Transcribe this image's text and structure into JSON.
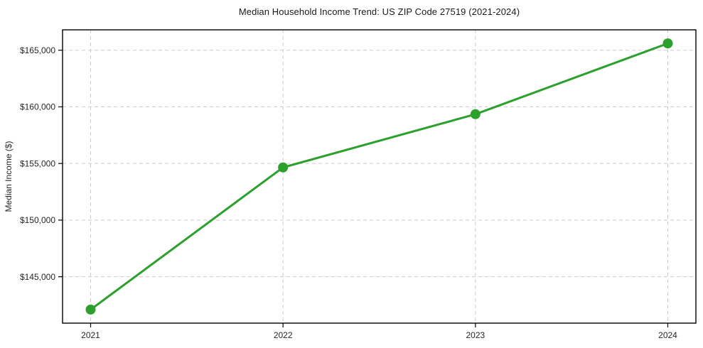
{
  "figure": {
    "title": "Median Household Income Trend: US ZIP Code 27519 (2021-2024)"
  },
  "chart_data": {
    "type": "line",
    "title": "Median Household Income Trend: US ZIP Code 27519 (2021-2024)",
    "categories": [
      "2021",
      "2022",
      "2023",
      "2024"
    ],
    "series": [
      {
        "name": "Median Household Income",
        "values": [
          142100,
          154650,
          159350,
          165600
        ],
        "color": "#2ca02c",
        "marker": "circle",
        "marker_radius": 7,
        "line_width": 3
      }
    ],
    "xlabel": "",
    "ylabel": "Median Income ($)",
    "ylim": [
      140900,
      166800
    ],
    "yticks": [
      145000,
      150000,
      155000,
      160000,
      165000
    ],
    "ytick_labels": [
      "$145,000",
      "$150,000",
      "$155,000",
      "$160,000",
      "$165,000"
    ],
    "xtick_labels": [
      "2021",
      "2022",
      "2023",
      "2024"
    ],
    "grid": true,
    "grid_style": "dashed",
    "grid_color": "#cccccc",
    "axis_color": "#000000",
    "text_color": "#262626",
    "background": "#ffffff",
    "legend_position": "none"
  }
}
